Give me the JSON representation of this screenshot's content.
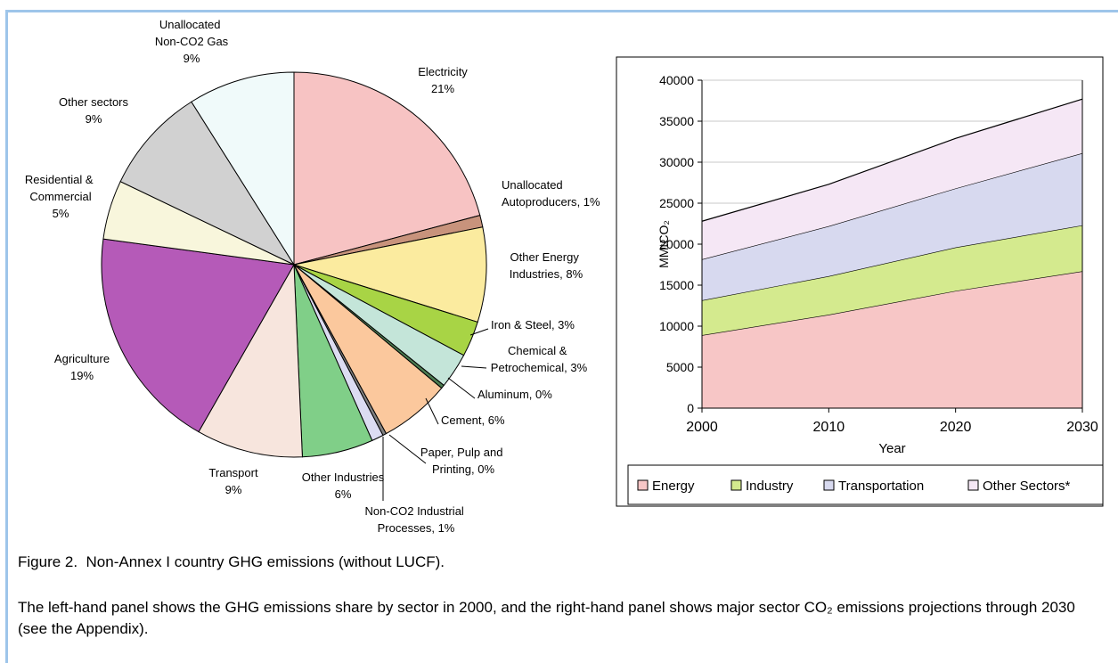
{
  "chart_data": [
    {
      "type": "pie",
      "categories": [
        "Electricity",
        "Unallocated Autoproducers",
        "Other Energy Industries",
        "Iron & Steel",
        "Chemical & Petrochemical",
        "Aluminum",
        "Cement",
        "Paper, Pulp and Printing",
        "Non-CO2 Industrial Processes",
        "Other Industries",
        "Transport",
        "Agriculture",
        "Residential & Commercial",
        "Other sectors",
        "Unallocated Non-CO2 Gas"
      ],
      "values": [
        21,
        1,
        8,
        3,
        3,
        0.3,
        6,
        0.3,
        1,
        6,
        9,
        19,
        5,
        9,
        9
      ],
      "value_labels": [
        "21%",
        "1%",
        "8%",
        "3%",
        "3%",
        "0%",
        "6%",
        "0%",
        "1%",
        "6%",
        "9%",
        "19%",
        "5%",
        "9%",
        "9%"
      ],
      "label_separator": ", ",
      "colors": [
        "#f7c3c3",
        "#c8937c",
        "#fbeb9f",
        "#a8d445",
        "#c4e5d9",
        "#4d7d52",
        "#fbc89d",
        "#808080",
        "#dcdcf2",
        "#80cf88",
        "#f7e5dd",
        "#b55ab8",
        "#f8f6dc",
        "#d1d1d1",
        "#f0fafa"
      ]
    },
    {
      "type": "area",
      "x": [
        2000,
        2010,
        2020,
        2030
      ],
      "series": [
        {
          "name": "Energy",
          "color": "#f7c6c6",
          "values": [
            8900,
            11400,
            14300,
            16700
          ]
        },
        {
          "name": "Industry",
          "color": "#d4ea8e",
          "values": [
            4250,
            4700,
            5300,
            5600
          ]
        },
        {
          "name": "Transportation",
          "color": "#d7d9ef",
          "values": [
            5000,
            6100,
            7200,
            8800
          ]
        },
        {
          "name": "Other Sectors*",
          "color": "#f5e7f5",
          "values": [
            4650,
            5100,
            6100,
            6600
          ]
        }
      ],
      "stacked": true,
      "xlabel": "Year",
      "ylabel": "MMtCO₂",
      "xlim": [
        2000,
        2030
      ],
      "xticks": [
        2000,
        2010,
        2020,
        2030
      ],
      "ylim": [
        0,
        40000
      ],
      "yticks": [
        0,
        5000,
        10000,
        15000,
        20000,
        25000,
        30000,
        35000,
        40000
      ],
      "grid": true,
      "legend": "bottom"
    }
  ],
  "caption": "Figure 2.  Non-Annex I country GHG emissions (without LUCF).",
  "description": "The left-hand panel shows the GHG emissions share by sector in 2000, and the right-hand panel shows major sector CO₂ emissions projections through 2030 (see the Appendix)."
}
